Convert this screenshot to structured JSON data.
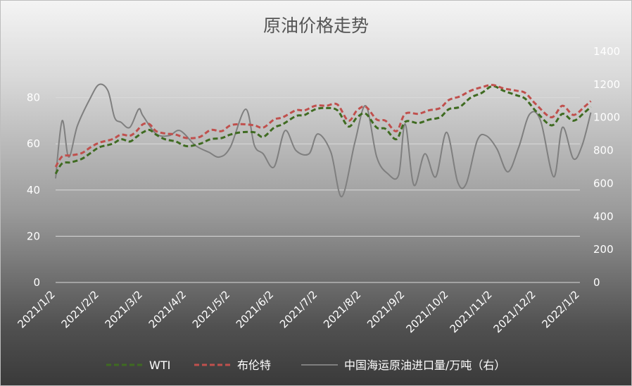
{
  "chart_data": {
    "type": "line",
    "title": "原油价格走势",
    "x_labels": [
      "2021/1/2",
      "2021/2/2",
      "2021/3/2",
      "2021/4/2",
      "2021/5/2",
      "2021/6/2",
      "2021/7/2",
      "2021/8/2",
      "2021/9/2",
      "2021/10/2",
      "2021/11/2",
      "2021/12/2",
      "2022/1/2"
    ],
    "y_left": {
      "ticks": [
        "0",
        "20",
        "40",
        "60",
        "80"
      ],
      "range": [
        0,
        100
      ]
    },
    "y_right": {
      "ticks": [
        "0",
        "200",
        "400",
        "600",
        "800",
        "1000",
        "1200",
        "1400"
      ],
      "range": [
        0,
        1400
      ]
    },
    "grid": true,
    "legend_position": "bottom",
    "series": [
      {
        "name": "WTI",
        "axis": "left",
        "style": "dashed",
        "color": "#3f6b21",
        "points": [
          [
            0,
            47
          ],
          [
            0.15,
            51.5
          ],
          [
            0.35,
            52
          ],
          [
            0.6,
            53.5
          ],
          [
            0.8,
            56
          ],
          [
            1.0,
            58.5
          ],
          [
            1.3,
            60
          ],
          [
            1.5,
            62
          ],
          [
            1.7,
            61
          ],
          [
            1.85,
            63
          ],
          [
            2.0,
            65
          ],
          [
            2.15,
            66
          ],
          [
            2.3,
            64
          ],
          [
            2.5,
            62
          ],
          [
            2.75,
            61
          ],
          [
            3.0,
            59
          ],
          [
            3.3,
            60
          ],
          [
            3.55,
            62
          ],
          [
            3.8,
            62.5
          ],
          [
            4.0,
            64
          ],
          [
            4.25,
            65
          ],
          [
            4.55,
            65
          ],
          [
            4.75,
            63
          ],
          [
            5.0,
            67
          ],
          [
            5.2,
            68.5
          ],
          [
            5.5,
            72
          ],
          [
            5.7,
            72.5
          ],
          [
            5.95,
            75
          ],
          [
            6.2,
            75.5
          ],
          [
            6.45,
            74.5
          ],
          [
            6.7,
            67.5
          ],
          [
            6.9,
            71.5
          ],
          [
            7.1,
            73
          ],
          [
            7.35,
            67
          ],
          [
            7.55,
            66.5
          ],
          [
            7.8,
            62
          ],
          [
            8.0,
            69.5
          ],
          [
            8.3,
            69
          ],
          [
            8.55,
            70.5
          ],
          [
            8.8,
            71.5
          ],
          [
            9.0,
            75
          ],
          [
            9.25,
            76
          ],
          [
            9.5,
            80
          ],
          [
            9.75,
            82
          ],
          [
            10.0,
            85
          ],
          [
            10.25,
            83
          ],
          [
            10.55,
            81
          ],
          [
            10.75,
            79.5
          ],
          [
            11.0,
            74
          ],
          [
            11.35,
            68
          ],
          [
            11.6,
            73
          ],
          [
            11.85,
            70
          ],
          [
            12.1,
            73.5
          ],
          [
            12.25,
            76
          ]
        ]
      },
      {
        "name": "布伦特",
        "axis": "left",
        "style": "dashed",
        "color": "#c0504d",
        "points": [
          [
            0,
            50
          ],
          [
            0.15,
            54.5
          ],
          [
            0.35,
            55
          ],
          [
            0.6,
            56
          ],
          [
            0.8,
            58.5
          ],
          [
            1.0,
            60.5
          ],
          [
            1.3,
            62
          ],
          [
            1.5,
            64
          ],
          [
            1.7,
            63.5
          ],
          [
            1.85,
            65.5
          ],
          [
            2.0,
            68.5
          ],
          [
            2.15,
            68.5
          ],
          [
            2.3,
            65.5
          ],
          [
            2.5,
            64.5
          ],
          [
            2.75,
            64
          ],
          [
            3.0,
            62.5
          ],
          [
            3.3,
            63
          ],
          [
            3.55,
            66
          ],
          [
            3.8,
            65.5
          ],
          [
            4.0,
            68
          ],
          [
            4.25,
            68.5
          ],
          [
            4.55,
            68
          ],
          [
            4.75,
            67
          ],
          [
            5.0,
            70.5
          ],
          [
            5.2,
            71.5
          ],
          [
            5.5,
            74.5
          ],
          [
            5.7,
            74.5
          ],
          [
            5.95,
            76.5
          ],
          [
            6.2,
            76.5
          ],
          [
            6.45,
            77
          ],
          [
            6.7,
            70
          ],
          [
            6.9,
            74.5
          ],
          [
            7.1,
            76
          ],
          [
            7.35,
            70.5
          ],
          [
            7.55,
            70
          ],
          [
            7.8,
            65.5
          ],
          [
            8.0,
            73
          ],
          [
            8.3,
            73
          ],
          [
            8.55,
            74.5
          ],
          [
            8.8,
            75.5
          ],
          [
            9.0,
            79
          ],
          [
            9.25,
            80.5
          ],
          [
            9.5,
            83
          ],
          [
            9.75,
            84.5
          ],
          [
            10.0,
            85.5
          ],
          [
            10.25,
            84
          ],
          [
            10.55,
            83
          ],
          [
            10.75,
            82
          ],
          [
            11.0,
            77
          ],
          [
            11.35,
            71.5
          ],
          [
            11.6,
            76.5
          ],
          [
            11.85,
            72.5
          ],
          [
            12.1,
            76
          ],
          [
            12.25,
            78.5
          ]
        ]
      },
      {
        "name": "中国海运原油进口量/万吨（右）",
        "axis": "right",
        "style": "solid",
        "color": "#7f7f7f",
        "points": [
          [
            0,
            630
          ],
          [
            0.15,
            980
          ],
          [
            0.3,
            760
          ],
          [
            0.5,
            950
          ],
          [
            0.8,
            1120
          ],
          [
            1.0,
            1200
          ],
          [
            1.2,
            1160
          ],
          [
            1.35,
            1000
          ],
          [
            1.5,
            970
          ],
          [
            1.7,
            940
          ],
          [
            1.9,
            1050
          ],
          [
            2.0,
            1010
          ],
          [
            2.3,
            900
          ],
          [
            2.6,
            890
          ],
          [
            2.85,
            920
          ],
          [
            3.2,
            830
          ],
          [
            3.5,
            790
          ],
          [
            3.75,
            760
          ],
          [
            4.0,
            820
          ],
          [
            4.35,
            1050
          ],
          [
            4.55,
            830
          ],
          [
            4.75,
            780
          ],
          [
            5.0,
            700
          ],
          [
            5.25,
            920
          ],
          [
            5.5,
            800
          ],
          [
            5.8,
            780
          ],
          [
            6.0,
            900
          ],
          [
            6.3,
            790
          ],
          [
            6.55,
            520
          ],
          [
            6.85,
            850
          ],
          [
            7.1,
            1070
          ],
          [
            7.35,
            760
          ],
          [
            7.6,
            660
          ],
          [
            7.85,
            650
          ],
          [
            8.0,
            960
          ],
          [
            8.2,
            590
          ],
          [
            8.45,
            780
          ],
          [
            8.7,
            640
          ],
          [
            8.95,
            910
          ],
          [
            9.2,
            610
          ],
          [
            9.4,
            600
          ],
          [
            9.65,
            860
          ],
          [
            9.85,
            890
          ],
          [
            10.1,
            810
          ],
          [
            10.35,
            670
          ],
          [
            10.6,
            820
          ],
          [
            10.85,
            1020
          ],
          [
            11.1,
            980
          ],
          [
            11.4,
            640
          ],
          [
            11.6,
            940
          ],
          [
            11.85,
            750
          ],
          [
            12.05,
            830
          ],
          [
            12.25,
            1030
          ]
        ]
      }
    ]
  }
}
